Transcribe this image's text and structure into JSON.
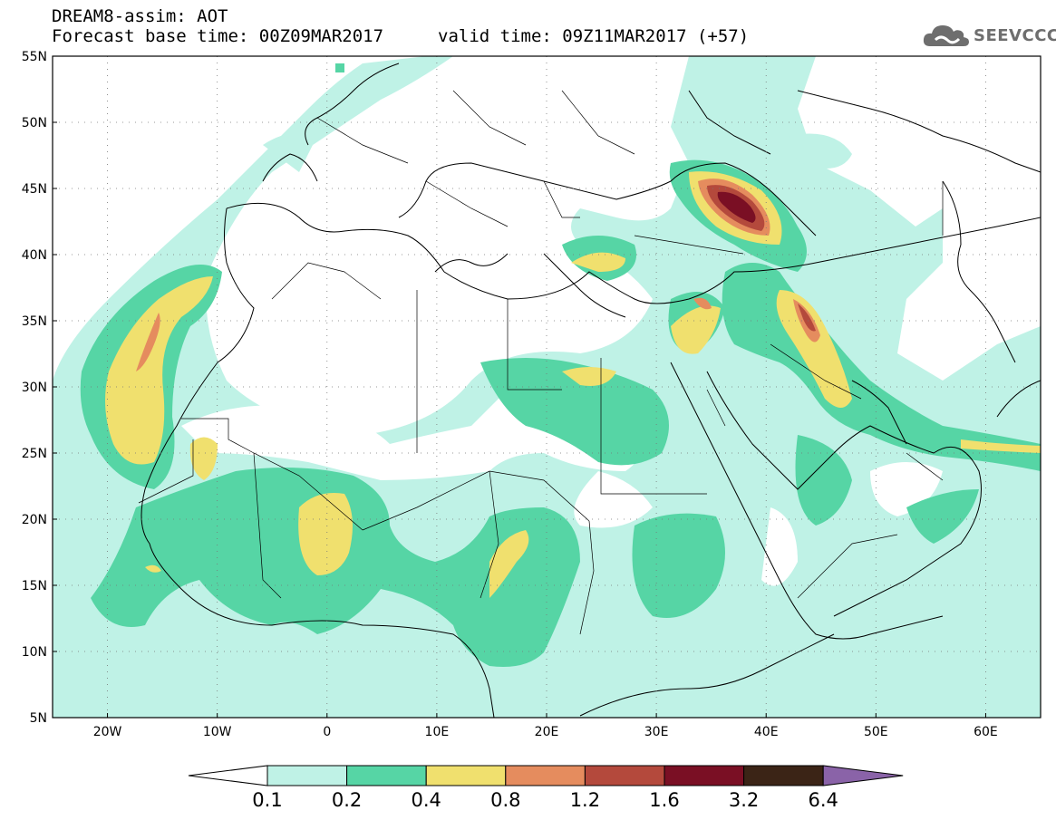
{
  "header": {
    "title": "DREAM8-assim: AOT",
    "base_time": "Forecast base time: 00Z09MAR2017",
    "valid_time": "valid time: 09Z11MAR2017 (+57)"
  },
  "logo": {
    "text": "SEEVCCC",
    "icon": "cloud-icon"
  },
  "map": {
    "lon_range": [
      -25,
      65
    ],
    "lat_range": [
      5,
      55
    ],
    "lon_ticks": [
      {
        "lon": -20,
        "label": "20W"
      },
      {
        "lon": -10,
        "label": "10W"
      },
      {
        "lon": 0,
        "label": "0"
      },
      {
        "lon": 10,
        "label": "10E"
      },
      {
        "lon": 20,
        "label": "20E"
      },
      {
        "lon": 30,
        "label": "30E"
      },
      {
        "lon": 40,
        "label": "40E"
      },
      {
        "lon": 50,
        "label": "50E"
      },
      {
        "lon": 60,
        "label": "60E"
      }
    ],
    "lat_ticks": [
      {
        "lat": 55,
        "label": "55N"
      },
      {
        "lat": 50,
        "label": "50N"
      },
      {
        "lat": 45,
        "label": "45N"
      },
      {
        "lat": 40,
        "label": "40N"
      },
      {
        "lat": 35,
        "label": "35N"
      },
      {
        "lat": 30,
        "label": "30N"
      },
      {
        "lat": 25,
        "label": "25N"
      },
      {
        "lat": 20,
        "label": "20N"
      },
      {
        "lat": 15,
        "label": "15N"
      },
      {
        "lat": 10,
        "label": "10N"
      },
      {
        "lat": 5,
        "label": "5N"
      }
    ],
    "grid": "dotted",
    "colors": {
      "0.1-0.2": "#bff2e6",
      "0.2-0.4": "#56d5a5",
      "0.4-0.8": "#f0e06e",
      "0.8-1.2": "#e58c5e",
      "1.2-1.6": "#b4493c",
      "1.6-3.2": "#7a0f24",
      "3.2-6.4": "#3b2416",
      ">6.4": "#8a63a8"
    }
  },
  "colorbar": {
    "labels": [
      "0.1",
      "0.2",
      "0.4",
      "0.8",
      "1.2",
      "1.6",
      "3.2",
      "6.4"
    ],
    "colors": [
      "#bff2e6",
      "#56d5a5",
      "#f0e06e",
      "#e58c5e",
      "#b4493c",
      "#7a0f24",
      "#3b2416"
    ],
    "under_color": "#ffffff",
    "over_color": "#8a63a8"
  }
}
